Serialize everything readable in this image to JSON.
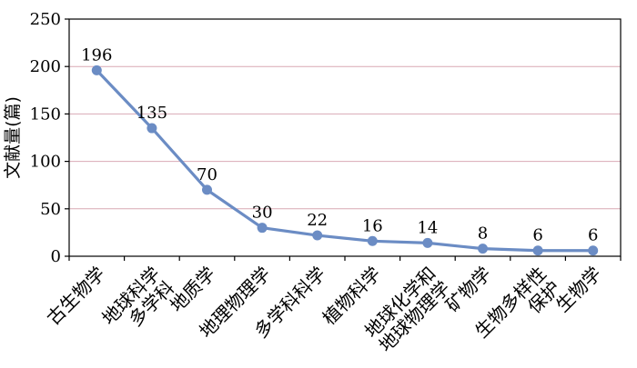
{
  "chart_data": {
    "type": "line",
    "title": "",
    "xlabel": "",
    "ylabel": "文献量(篇)",
    "ylim": [
      0,
      250
    ],
    "yticks": [
      0,
      50,
      100,
      150,
      200,
      250
    ],
    "grid": true,
    "categories": [
      [
        "古生物学"
      ],
      [
        "地球科学",
        "多学科"
      ],
      [
        "地质学"
      ],
      [
        "地理物理学"
      ],
      [
        "多学科科学"
      ],
      [
        "植物科学"
      ],
      [
        "地球化学和",
        "地球物理学"
      ],
      [
        "矿物学"
      ],
      [
        "生物多样性",
        "保护"
      ],
      [
        "生物学"
      ]
    ],
    "series": [
      {
        "values": [
          196,
          135,
          70,
          30,
          22,
          16,
          14,
          8,
          6,
          6
        ]
      }
    ],
    "colors": {
      "line": "#6b8cc4",
      "grid": "#d9a9b4",
      "axis": "#000000"
    }
  }
}
